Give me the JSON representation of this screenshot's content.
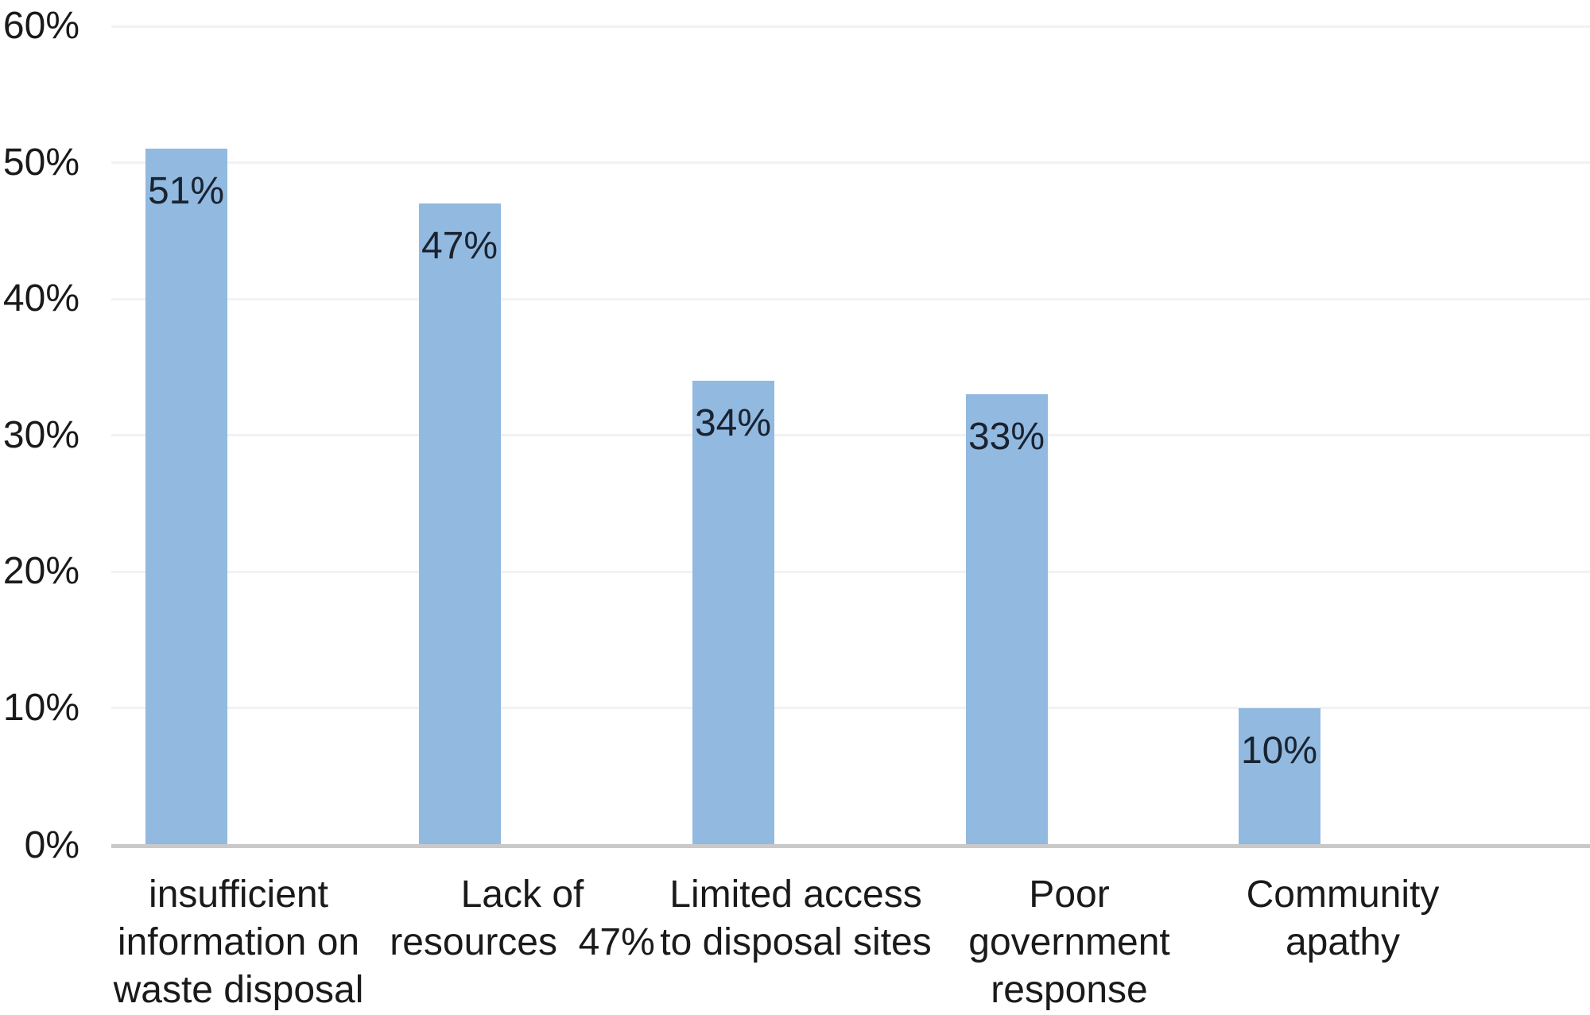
{
  "chart_data": {
    "type": "bar",
    "title": "",
    "xlabel": "",
    "ylabel": "",
    "categories": [
      "insufficient information on waste disposal",
      "Lack of resources  47%",
      "Limited access to disposal sites",
      "Poor government response",
      "Community apathy"
    ],
    "category_label_lines": [
      [
        "insufficient",
        "information on",
        "waste disposal"
      ],
      [
        "Lack of",
        "resources  47%"
      ],
      [
        "Limited access",
        "to disposal sites"
      ],
      [
        "Poor",
        "government",
        "response"
      ],
      [
        "Community",
        "apathy"
      ]
    ],
    "values": [
      51,
      47,
      34,
      33,
      10
    ],
    "bar_value_labels": [
      "51%",
      "47%",
      "34%",
      "33%",
      "10%"
    ],
    "ylim": [
      0,
      60
    ],
    "ytick_values": [
      0,
      10,
      20,
      30,
      40,
      50,
      60
    ],
    "ytick_labels": [
      "0%",
      "10%",
      "20%",
      "30%",
      "40%",
      "50%",
      "60%"
    ],
    "grid": true,
    "legend": false,
    "colors": {
      "bar_fill": "#92B9E0",
      "gridline": "#F2F2F2",
      "axis_line": "#C9C9C9",
      "tick_text": "#1A1A1A",
      "category_text": "#1A1A1A",
      "bar_label_text": "#1A2330",
      "background": "#FFFFFF"
    }
  }
}
